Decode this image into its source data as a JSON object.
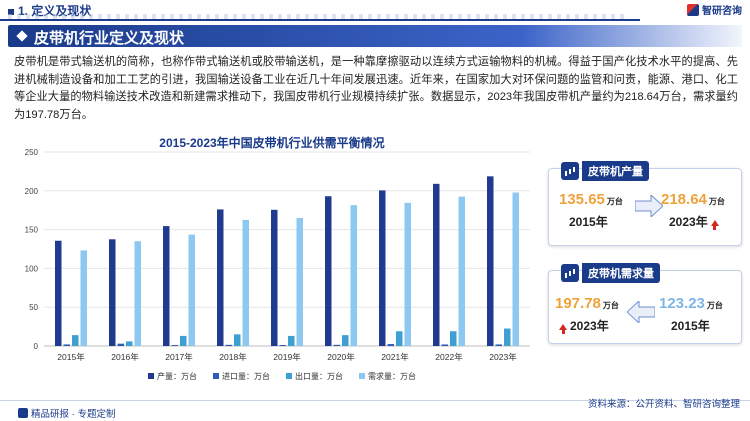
{
  "header": {
    "section_title": "1. 定义及现状",
    "logo_text": "智研咨询"
  },
  "banner": {
    "title": "皮带机行业定义及现状"
  },
  "paragraph": "皮带机是带式输送机的简称，也称作带式输送机或胶带输送机，是一种靠摩擦驱动以连续方式运输物料的机械。得益于国产化技术水平的提高、先进机械制造设备和加工工艺的引进，我国输送设备工业在近几十年间发展迅速。近年来，在国家加大对环保问题的监管和问责，能源、港口、化工等企业大量的物料输送技术改造和新建需求推动下，我国皮带机行业规模持续扩张。数据显示，2023年我国皮带机产量约为218.64万台，需求量约为197.78万台。",
  "chart_data": {
    "type": "bar",
    "title": "2015-2023年中国皮带机行业供需平衡情况",
    "categories": [
      "2015年",
      "2016年",
      "2017年",
      "2018年",
      "2019年",
      "2020年",
      "2021年",
      "2022年",
      "2023年"
    ],
    "ylim": [
      0,
      250
    ],
    "yticks": [
      0,
      50,
      100,
      150,
      200,
      250
    ],
    "grid": true,
    "legend_position": "bottom",
    "series": [
      {
        "name": "产量：万台",
        "color": "#1f3a8f",
        "values": [
          135.65,
          137.5,
          154.5,
          176.0,
          175.5,
          193.0,
          200.5,
          209.0,
          218.64
        ]
      },
      {
        "name": "进口量：万台",
        "color": "#2f5bb8",
        "values": [
          2.0,
          3.0,
          1.2,
          1.5,
          1.3,
          1.5,
          2.5,
          2.0,
          2.0
        ]
      },
      {
        "name": "出口量：万台",
        "color": "#3e9fd3",
        "values": [
          14.0,
          6.0,
          13.0,
          15.0,
          13.0,
          14.0,
          19.0,
          19.0,
          22.5
        ]
      },
      {
        "name": "需求量：万台",
        "color": "#8cc8ef",
        "values": [
          123.23,
          135.0,
          143.5,
          162.5,
          165.0,
          181.5,
          184.5,
          192.5,
          197.78
        ]
      }
    ]
  },
  "cards": {
    "production": {
      "label": "皮带机产量",
      "from_value": "135.65",
      "from_unit": "万台",
      "from_year": "2015年",
      "to_value": "218.64",
      "to_unit": "万台",
      "to_year": "2023年"
    },
    "demand": {
      "label": "皮带机需求量",
      "left_value": "197.78",
      "left_unit": "万台",
      "left_year": "2023年",
      "right_value": "123.23",
      "right_unit": "万台",
      "right_year": "2015年"
    }
  },
  "footer": {
    "left": "精品研报 · 专题定制",
    "right": "资料来源：公开资料、智研咨询整理"
  },
  "colors": {
    "brand": "#1a3a8a",
    "highlight_value": "#f0a23a",
    "up_arrow": "#d4271e"
  }
}
